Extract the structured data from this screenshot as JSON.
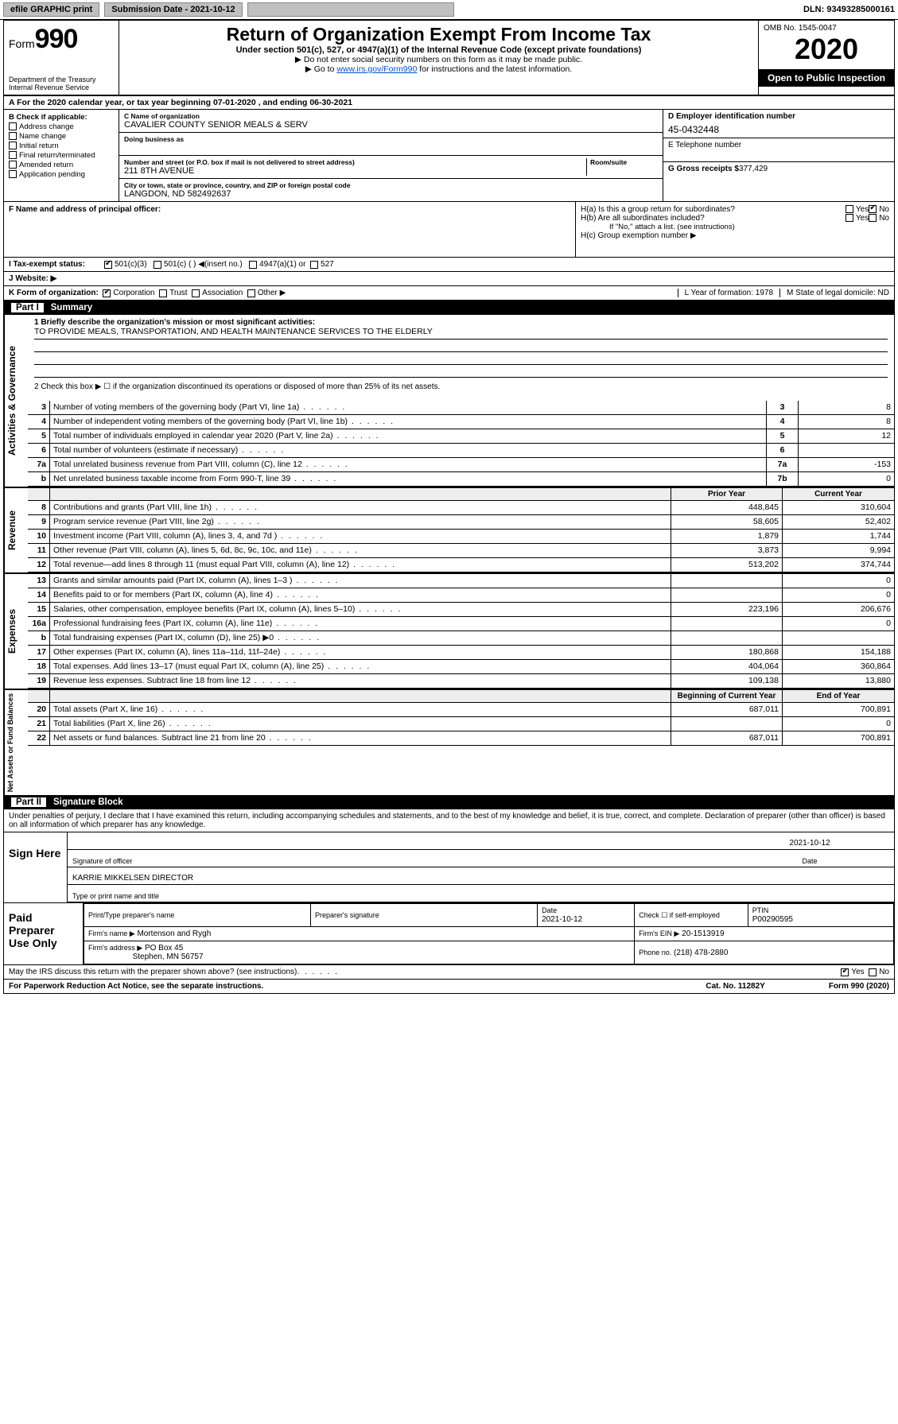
{
  "topbar": {
    "efile": "efile GRAPHIC print",
    "submission": "Submission Date - 2021-10-12",
    "dln_label": "DLN:",
    "dln": "93493285000161"
  },
  "header": {
    "form_label": "Form",
    "form_number": "990",
    "title": "Return of Organization Exempt From Income Tax",
    "sub1": "Under section 501(c), 527, or 4947(a)(1) of the Internal Revenue Code (except private foundations)",
    "sub2": "▶ Do not enter social security numbers on this form as it may be made public.",
    "sub3_pre": "▶ Go to ",
    "sub3_link": "www.irs.gov/Form990",
    "sub3_post": " for instructions and the latest information.",
    "dept1": "Department of the Treasury",
    "dept2": "Internal Revenue Service",
    "omb": "OMB No. 1545-0047",
    "year": "2020",
    "open": "Open to Public Inspection"
  },
  "period": "A For the 2020 calendar year, or tax year beginning 07-01-2020   , and ending 06-30-2021",
  "boxB": {
    "label": "B Check if applicable:",
    "items": [
      "Address change",
      "Name change",
      "Initial return",
      "Final return/terminated",
      "Amended return",
      "Application pending"
    ]
  },
  "boxC": {
    "name_lab": "C Name of organization",
    "name": "CAVALIER COUNTY SENIOR MEALS & SERV",
    "dba_lab": "Doing business as",
    "addr_lab": "Number and street (or P.O. box if mail is not delivered to street address)",
    "room_lab": "Room/suite",
    "addr": "211 8TH AVENUE",
    "city_lab": "City or town, state or province, country, and ZIP or foreign postal code",
    "city": "LANGDON, ND  582492637",
    "F_lab": "F Name and address of principal officer:"
  },
  "boxD": {
    "ein_lab": "D Employer identification number",
    "ein": "45-0432448",
    "tel_lab": "E Telephone number",
    "gross_lab": "G Gross receipts $",
    "gross": "377,429"
  },
  "boxH": {
    "a": "H(a)  Is this a group return for subordinates?",
    "b": "H(b)  Are all subordinates included?",
    "note": "If \"No,\" attach a list. (see instructions)",
    "c": "H(c)  Group exemption number ▶",
    "yes": "Yes",
    "no": "No"
  },
  "I": {
    "label": "I   Tax-exempt status:",
    "opts": [
      "501(c)(3)",
      "501(c) (  ) ◀(insert no.)",
      "4947(a)(1) or",
      "527"
    ]
  },
  "J": {
    "label": "J   Website: ▶"
  },
  "K": {
    "label": "K Form of organization:",
    "opts": [
      "Corporation",
      "Trust",
      "Association",
      "Other ▶"
    ],
    "L": "L Year of formation: 1978",
    "M": "M State of legal domicile: ND"
  },
  "part1": {
    "bar": "Part I",
    "title": "Summary"
  },
  "mission": {
    "q1": "1  Briefly describe the organization's mission or most significant activities:",
    "text": "TO PROVIDE MEALS, TRANSPORTATION, AND HEALTH MAINTENANCE SERVICES TO THE ELDERLY",
    "q2": "2   Check this box ▶ ☐  if the organization discontinued its operations or disposed of more than 25% of its net assets."
  },
  "gov_lines": [
    {
      "n": "3",
      "t": "Number of voting members of the governing body (Part VI, line 1a)",
      "c": "3",
      "v": "8"
    },
    {
      "n": "4",
      "t": "Number of independent voting members of the governing body (Part VI, line 1b)",
      "c": "4",
      "v": "8"
    },
    {
      "n": "5",
      "t": "Total number of individuals employed in calendar year 2020 (Part V, line 2a)",
      "c": "5",
      "v": "12"
    },
    {
      "n": "6",
      "t": "Total number of volunteers (estimate if necessary)",
      "c": "6",
      "v": ""
    },
    {
      "n": "7a",
      "t": "Total unrelated business revenue from Part VIII, column (C), line 12",
      "c": "7a",
      "v": "-153"
    },
    {
      "n": "b",
      "t": "Net unrelated business taxable income from Form 990-T, line 39",
      "c": "7b",
      "v": "0"
    }
  ],
  "col_hdr": {
    "prior": "Prior Year",
    "current": "Current Year"
  },
  "revenue": [
    {
      "n": "8",
      "t": "Contributions and grants (Part VIII, line 1h)",
      "p": "448,845",
      "c": "310,604"
    },
    {
      "n": "9",
      "t": "Program service revenue (Part VIII, line 2g)",
      "p": "58,605",
      "c": "52,402"
    },
    {
      "n": "10",
      "t": "Investment income (Part VIII, column (A), lines 3, 4, and 7d )",
      "p": "1,879",
      "c": "1,744"
    },
    {
      "n": "11",
      "t": "Other revenue (Part VIII, column (A), lines 5, 6d, 8c, 9c, 10c, and 11e)",
      "p": "3,873",
      "c": "9,994"
    },
    {
      "n": "12",
      "t": "Total revenue—add lines 8 through 11 (must equal Part VIII, column (A), line 12)",
      "p": "513,202",
      "c": "374,744"
    }
  ],
  "expenses": [
    {
      "n": "13",
      "t": "Grants and similar amounts paid (Part IX, column (A), lines 1–3 )",
      "p": "",
      "c": "0"
    },
    {
      "n": "14",
      "t": "Benefits paid to or for members (Part IX, column (A), line 4)",
      "p": "",
      "c": "0"
    },
    {
      "n": "15",
      "t": "Salaries, other compensation, employee benefits (Part IX, column (A), lines 5–10)",
      "p": "223,196",
      "c": "206,676"
    },
    {
      "n": "16a",
      "t": "Professional fundraising fees (Part IX, column (A), line 11e)",
      "p": "",
      "c": "0"
    },
    {
      "n": "b",
      "t": "Total fundraising expenses (Part IX, column (D), line 25) ▶0",
      "p": "",
      "c": ""
    },
    {
      "n": "17",
      "t": "Other expenses (Part IX, column (A), lines 11a–11d, 11f–24e)",
      "p": "180,868",
      "c": "154,188"
    },
    {
      "n": "18",
      "t": "Total expenses. Add lines 13–17 (must equal Part IX, column (A), line 25)",
      "p": "404,064",
      "c": "360,864"
    },
    {
      "n": "19",
      "t": "Revenue less expenses. Subtract line 18 from line 12",
      "p": "109,138",
      "c": "13,880"
    }
  ],
  "net_hdr": {
    "beg": "Beginning of Current Year",
    "end": "End of Year"
  },
  "net": [
    {
      "n": "20",
      "t": "Total assets (Part X, line 16)",
      "p": "687,011",
      "c": "700,891"
    },
    {
      "n": "21",
      "t": "Total liabilities (Part X, line 26)",
      "p": "",
      "c": "0"
    },
    {
      "n": "22",
      "t": "Net assets or fund balances. Subtract line 21 from line 20",
      "p": "687,011",
      "c": "700,891"
    }
  ],
  "vlabels": {
    "gov": "Activities & Governance",
    "rev": "Revenue",
    "exp": "Expenses",
    "net": "Net Assets or Fund Balances"
  },
  "part2": {
    "bar": "Part II",
    "title": "Signature Block"
  },
  "sig": {
    "decl": "Under penalties of perjury, I declare that I have examined this return, including accompanying schedules and statements, and to the best of my knowledge and belief, it is true, correct, and complete. Declaration of preparer (other than officer) is based on all information of which preparer has any knowledge.",
    "sign_here": "Sign Here",
    "sig_officer": "Signature of officer",
    "date": "2021-10-12",
    "date_lab": "Date",
    "name": "KARRIE MIKKELSEN  DIRECTOR",
    "name_lab": "Type or print name and title"
  },
  "paid": {
    "title": "Paid Preparer Use Only",
    "h1": "Print/Type preparer's name",
    "h2": "Preparer's signature",
    "h3": "Date",
    "h3v": "2021-10-12",
    "h4": "Check ☐ if self-employed",
    "h5": "PTIN",
    "h5v": "P00290595",
    "firm_lab": "Firm's name   ▶",
    "firm": "Mortenson and Rygh",
    "ein_lab": "Firm's EIN ▶",
    "ein": "20-1513919",
    "addr_lab": "Firm's address ▶",
    "addr1": "PO Box 45",
    "addr2": "Stephen, MN  56757",
    "phone_lab": "Phone no.",
    "phone": "(218) 478-2880"
  },
  "discuss": "May the IRS discuss this return with the preparer shown above? (see instructions)",
  "footer": {
    "left": "For Paperwork Reduction Act Notice, see the separate instructions.",
    "mid": "Cat. No. 11282Y",
    "right": "Form 990 (2020)"
  },
  "yes": "Yes",
  "no": "No"
}
